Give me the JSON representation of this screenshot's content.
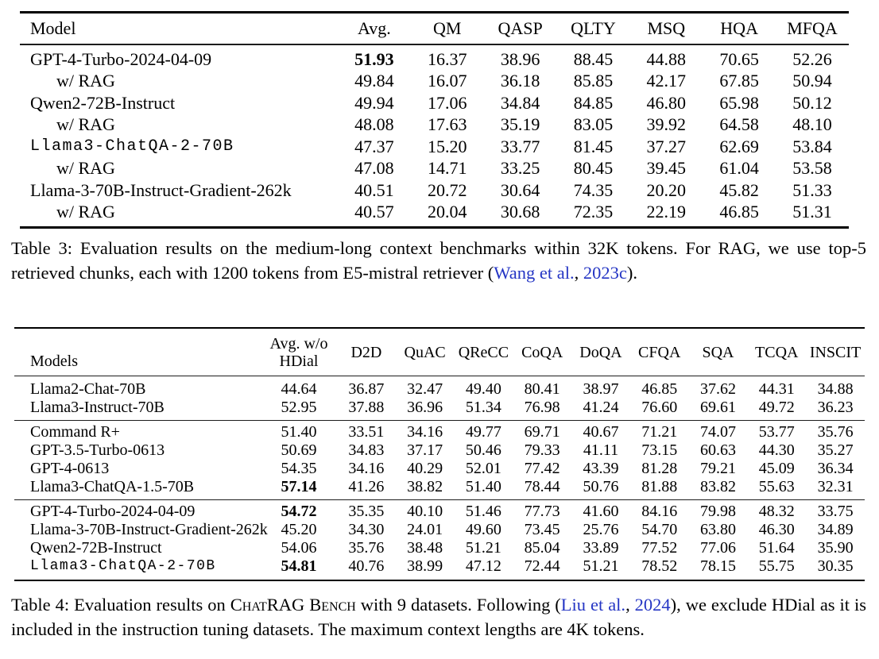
{
  "table3": {
    "columns": [
      "Model",
      "Avg.",
      "QM",
      "QASP",
      "QLTY",
      "MSQ",
      "HQA",
      "MFQA"
    ],
    "rows": [
      {
        "model": "GPT-4-Turbo-2024-04-09",
        "indent": false,
        "mono": false,
        "values": [
          "51.93",
          "16.37",
          "38.96",
          "88.45",
          "44.88",
          "70.65",
          "52.26"
        ],
        "bold": [
          0
        ]
      },
      {
        "model": "w/ RAG",
        "indent": true,
        "mono": false,
        "values": [
          "49.84",
          "16.07",
          "36.18",
          "85.85",
          "42.17",
          "67.85",
          "50.94"
        ],
        "bold": []
      },
      {
        "model": "Qwen2-72B-Instruct",
        "indent": false,
        "mono": false,
        "values": [
          "49.94",
          "17.06",
          "34.84",
          "84.85",
          "46.80",
          "65.98",
          "50.12"
        ],
        "bold": []
      },
      {
        "model": "w/ RAG",
        "indent": true,
        "mono": false,
        "values": [
          "48.08",
          "17.63",
          "35.19",
          "83.05",
          "39.92",
          "64.58",
          "48.10"
        ],
        "bold": []
      },
      {
        "model": "Llama3-ChatQA-2-70B",
        "indent": false,
        "mono": true,
        "values": [
          "47.37",
          "15.20",
          "33.77",
          "81.45",
          "37.27",
          "62.69",
          "53.84"
        ],
        "bold": []
      },
      {
        "model": "w/ RAG",
        "indent": true,
        "mono": false,
        "values": [
          "47.08",
          "14.71",
          "33.25",
          "80.45",
          "39.45",
          "61.04",
          "53.58"
        ],
        "bold": []
      },
      {
        "model": "Llama-3-70B-Instruct-Gradient-262k",
        "indent": false,
        "mono": false,
        "values": [
          "40.51",
          "20.72",
          "30.64",
          "74.35",
          "20.20",
          "45.82",
          "51.33"
        ],
        "bold": []
      },
      {
        "model": "w/ RAG",
        "indent": true,
        "mono": false,
        "values": [
          "40.57",
          "20.04",
          "30.68",
          "72.35",
          "22.19",
          "46.85",
          "51.31"
        ],
        "bold": []
      }
    ],
    "caption": [
      {
        "text": "Table 3: Evaluation results on the medium-long context benchmarks within 32K tokens. For RAG, we use top-5 retrieved chunks, each with 1200 tokens from E5-mistral retriever ("
      },
      {
        "text": "Wang et al.",
        "link": true
      },
      {
        "text": ", "
      },
      {
        "text": "2023c",
        "link": true
      },
      {
        "text": ")."
      }
    ]
  },
  "table4": {
    "columns": [
      "Models",
      "Avg. w/o\nHDial",
      "D2D",
      "QuAC",
      "QReCC",
      "CoQA",
      "DoQA",
      "CFQA",
      "SQA",
      "TCQA",
      "INSCIT"
    ],
    "groups": [
      {
        "rows": [
          {
            "model": "Llama2-Chat-70B",
            "mono": false,
            "values": [
              "44.64",
              "36.87",
              "32.47",
              "49.40",
              "80.41",
              "38.97",
              "46.85",
              "37.62",
              "44.31",
              "34.88"
            ],
            "bold": []
          },
          {
            "model": "Llama3-Instruct-70B",
            "mono": false,
            "values": [
              "52.95",
              "37.88",
              "36.96",
              "51.34",
              "76.98",
              "41.24",
              "76.60",
              "69.61",
              "49.72",
              "36.23"
            ],
            "bold": []
          }
        ]
      },
      {
        "rows": [
          {
            "model": "Command R+",
            "mono": false,
            "values": [
              "51.40",
              "33.51",
              "34.16",
              "49.77",
              "69.71",
              "40.67",
              "71.21",
              "74.07",
              "53.77",
              "35.76"
            ],
            "bold": []
          },
          {
            "model": "GPT-3.5-Turbo-0613",
            "mono": false,
            "values": [
              "50.69",
              "34.83",
              "37.17",
              "50.46",
              "79.33",
              "41.11",
              "73.15",
              "60.63",
              "44.30",
              "35.27"
            ],
            "bold": []
          },
          {
            "model": "GPT-4-0613",
            "mono": false,
            "values": [
              "54.35",
              "34.16",
              "40.29",
              "52.01",
              "77.42",
              "43.39",
              "81.28",
              "79.21",
              "45.09",
              "36.34"
            ],
            "bold": []
          },
          {
            "model": "Llama3-ChatQA-1.5-70B",
            "mono": false,
            "values": [
              "57.14",
              "41.26",
              "38.82",
              "51.40",
              "78.44",
              "50.76",
              "81.88",
              "83.82",
              "55.63",
              "32.31"
            ],
            "bold": [
              0
            ]
          }
        ]
      },
      {
        "rows": [
          {
            "model": "GPT-4-Turbo-2024-04-09",
            "mono": false,
            "values": [
              "54.72",
              "35.35",
              "40.10",
              "51.46",
              "77.73",
              "41.60",
              "84.16",
              "79.98",
              "48.32",
              "33.75"
            ],
            "bold": [
              0
            ]
          },
          {
            "model": "Llama-3-70B-Instruct-Gradient-262k",
            "mono": false,
            "values": [
              "45.20",
              "34.30",
              "24.01",
              "49.60",
              "73.45",
              "25.76",
              "54.70",
              "63.80",
              "46.30",
              "34.89"
            ],
            "bold": []
          },
          {
            "model": "Qwen2-72B-Instruct",
            "mono": false,
            "values": [
              "54.06",
              "35.76",
              "38.48",
              "51.21",
              "85.04",
              "33.89",
              "77.52",
              "77.06",
              "51.64",
              "35.90"
            ],
            "bold": []
          },
          {
            "model": "Llama3-ChatQA-2-70B",
            "mono": true,
            "values": [
              "54.81",
              "40.76",
              "38.99",
              "47.12",
              "72.44",
              "51.21",
              "78.52",
              "78.15",
              "55.75",
              "30.35"
            ],
            "bold": [
              0
            ]
          }
        ]
      }
    ],
    "caption": [
      {
        "text": "Table 4: Evaluation results on "
      },
      {
        "text": "ChatRAG Bench",
        "smallcaps": true
      },
      {
        "text": " with 9 datasets. Following ("
      },
      {
        "text": "Liu et al.",
        "link": true
      },
      {
        "text": ", "
      },
      {
        "text": "2024",
        "link": true
      },
      {
        "text": "), we exclude HDial as it is included in the instruction tuning datasets. The maximum context lengths are 4K tokens."
      }
    ]
  }
}
